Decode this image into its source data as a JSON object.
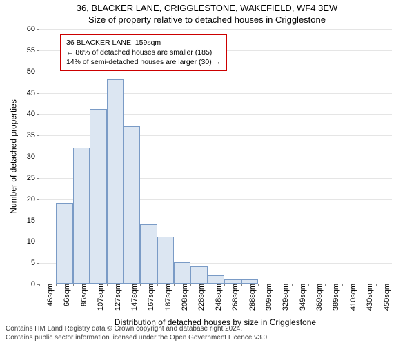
{
  "titles": {
    "line1": "36, BLACKER LANE, CRIGGLESTONE, WAKEFIELD, WF4 3EW",
    "line2": "Size of property relative to detached houses in Crigglestone"
  },
  "axes": {
    "ylabel": "Number of detached properties",
    "xlabel": "Distribution of detached houses by size in Crigglestone",
    "ylim": [
      0,
      60
    ],
    "ytick_step": 5,
    "label_fontsize": 12,
    "tick_fontsize": 11,
    "grid_color": "#e5e5e5",
    "axis_color": "#c0c0c0"
  },
  "chart": {
    "type": "histogram",
    "bar_fill": "#dce6f2",
    "bar_border": "#7a9bc6",
    "background_color": "#ffffff",
    "categories": [
      "46sqm",
      "66sqm",
      "86sqm",
      "107sqm",
      "127sqm",
      "147sqm",
      "167sqm",
      "187sqm",
      "208sqm",
      "228sqm",
      "248sqm",
      "268sqm",
      "288sqm",
      "309sqm",
      "329sqm",
      "349sqm",
      "369sqm",
      "389sqm",
      "410sqm",
      "430sqm",
      "450sqm"
    ],
    "values": [
      0,
      19,
      32,
      41,
      48,
      37,
      14,
      11,
      5,
      4,
      2,
      1,
      1,
      0,
      0,
      0,
      0,
      0,
      0,
      0,
      0
    ],
    "bar_width": 1.0
  },
  "reference_line": {
    "color": "#cc0000",
    "width": 1,
    "position_category_index": 5.65
  },
  "annotation": {
    "border_color": "#cc0000",
    "border_width": 1,
    "background": "#ffffff",
    "fontsize": 10.5,
    "lines": [
      "36 BLACKER LANE: 159sqm",
      "← 86% of detached houses are smaller (185)",
      "14% of semi-detached houses are larger (30) →"
    ]
  },
  "footer": {
    "line1": "Contains HM Land Registry data © Crown copyright and database right 2024.",
    "line2": "Contains public sector information licensed under the Open Government Licence v3.0."
  }
}
